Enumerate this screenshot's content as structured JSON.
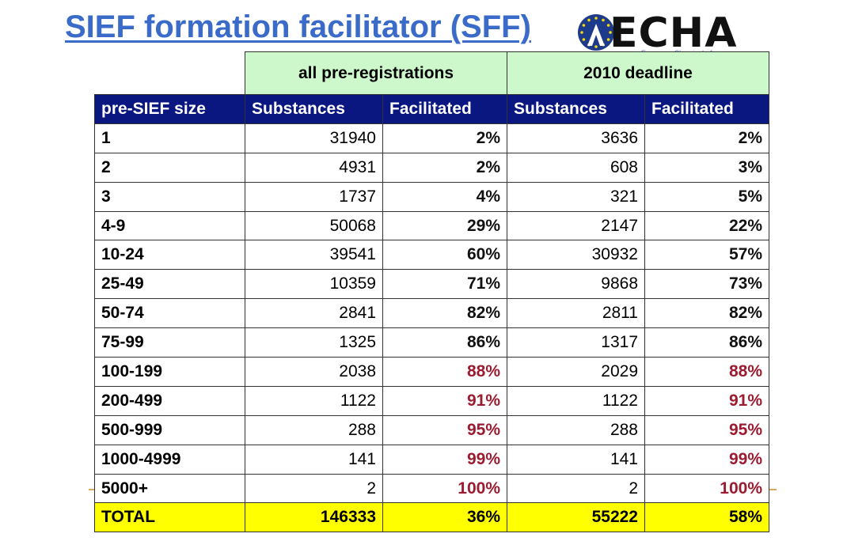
{
  "slide": {
    "title": "SIEF formation facilitator (SFF)",
    "logo_text": "ECHA",
    "logo_tagline": "European Chemicals Agency"
  },
  "colors": {
    "title": "#3a6bc9",
    "header_bg": "#0a1780",
    "group_bg": "#ccf8cc",
    "total_bg": "#ffff00",
    "highlight_pct": "#9b1b30"
  },
  "table": {
    "groups": [
      "all pre-registrations",
      "2010 deadline"
    ],
    "headers": [
      "pre-SIEF size",
      "Substances",
      "Facilitated",
      "Substances",
      "Facilitated"
    ],
    "rows": [
      {
        "size": "1",
        "all_substances": "31940",
        "all_facilitated": "2%",
        "d2010_substances": "3636",
        "d2010_facilitated": "2%",
        "highlight": false
      },
      {
        "size": "2",
        "all_substances": "4931",
        "all_facilitated": "2%",
        "d2010_substances": "608",
        "d2010_facilitated": "3%",
        "highlight": false
      },
      {
        "size": "3",
        "all_substances": "1737",
        "all_facilitated": "4%",
        "d2010_substances": "321",
        "d2010_facilitated": "5%",
        "highlight": false
      },
      {
        "size": "4-9",
        "all_substances": "50068",
        "all_facilitated": "29%",
        "d2010_substances": "2147",
        "d2010_facilitated": "22%",
        "highlight": false
      },
      {
        "size": "10-24",
        "all_substances": "39541",
        "all_facilitated": "60%",
        "d2010_substances": "30932",
        "d2010_facilitated": "57%",
        "highlight": false
      },
      {
        "size": "25-49",
        "all_substances": "10359",
        "all_facilitated": "71%",
        "d2010_substances": "9868",
        "d2010_facilitated": "73%",
        "highlight": false
      },
      {
        "size": "50-74",
        "all_substances": "2841",
        "all_facilitated": "82%",
        "d2010_substances": "2811",
        "d2010_facilitated": "82%",
        "highlight": false
      },
      {
        "size": "75-99",
        "all_substances": "1325",
        "all_facilitated": "86%",
        "d2010_substances": "1317",
        "d2010_facilitated": "86%",
        "highlight": false
      },
      {
        "size": "100-199",
        "all_substances": "2038",
        "all_facilitated": "88%",
        "d2010_substances": "2029",
        "d2010_facilitated": "88%",
        "highlight": true
      },
      {
        "size": "200-499",
        "all_substances": "1122",
        "all_facilitated": "91%",
        "d2010_substances": "1122",
        "d2010_facilitated": "91%",
        "highlight": true
      },
      {
        "size": "500-999",
        "all_substances": "288",
        "all_facilitated": "95%",
        "d2010_substances": "288",
        "d2010_facilitated": "95%",
        "highlight": true
      },
      {
        "size": "1000-4999",
        "all_substances": "141",
        "all_facilitated": "99%",
        "d2010_substances": "141",
        "d2010_facilitated": "99%",
        "highlight": true
      },
      {
        "size": "5000+",
        "all_substances": "2",
        "all_facilitated": "100%",
        "d2010_substances": "2",
        "d2010_facilitated": "100%",
        "highlight": true
      }
    ],
    "total": {
      "label": "TOTAL",
      "all_substances": "146333",
      "all_facilitated": "36%",
      "d2010_substances": "55222",
      "d2010_facilitated": "58%"
    }
  }
}
